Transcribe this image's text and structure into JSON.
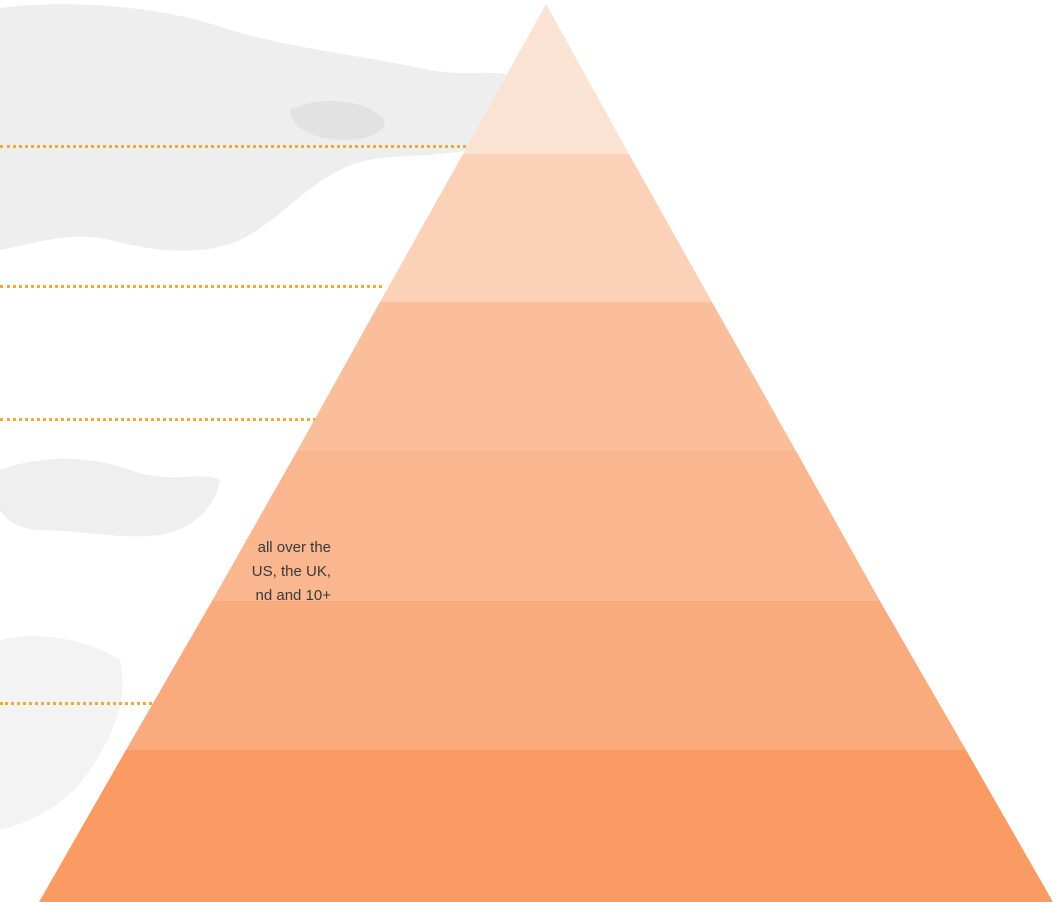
{
  "slide": {
    "description_lines": [
      "all over the",
      "US, the UK,",
      "nd and 10+"
    ]
  },
  "colors": {
    "leader_dots": "#f2a93b",
    "tier_colors": [
      "#fbe3d3",
      "#fbd2b7",
      "#fabf9a",
      "#fab68e",
      "#faab7e",
      "#f99b63"
    ],
    "map_tint": "#ececec"
  }
}
